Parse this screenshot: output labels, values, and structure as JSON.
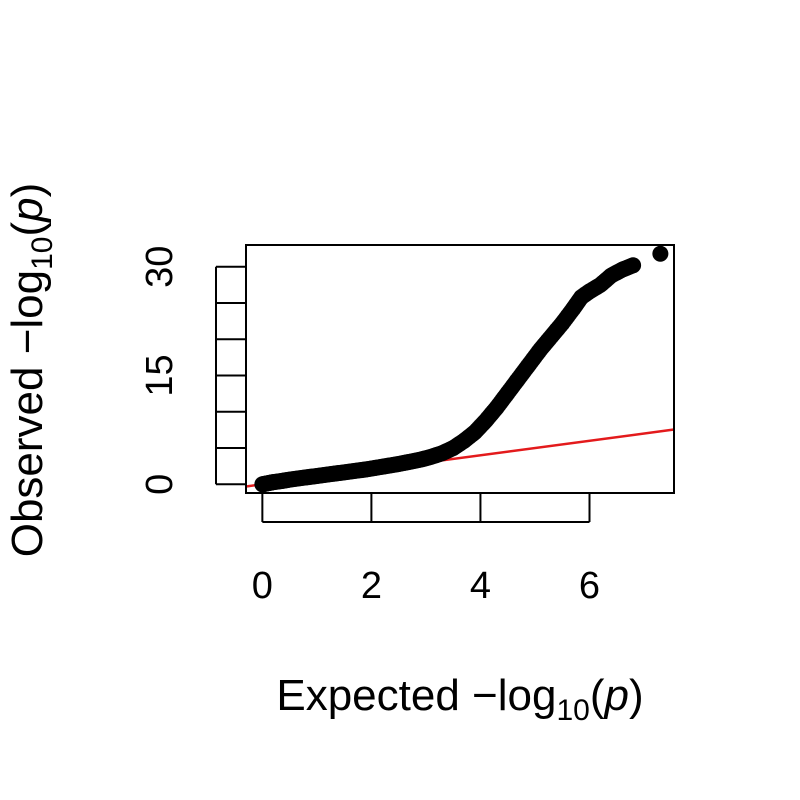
{
  "chart_data": {
    "type": "scatter",
    "title": "",
    "xlabel": {
      "prefix": "Expected  −log",
      "subscript": "10",
      "open": "(",
      "var": "p",
      "close": ")"
    },
    "ylabel": {
      "prefix": "Observed  −log",
      "subscript": "10",
      "open": "(",
      "var": "p",
      "close": ")"
    },
    "xlim": [
      -0.3,
      7.55
    ],
    "ylim": [
      -1.2,
      33
    ],
    "x_ticks": [
      0,
      2,
      4,
      6
    ],
    "x_tick_labels": [
      "0",
      "2",
      "4",
      "6"
    ],
    "y_ticks": [
      0,
      5,
      10,
      15,
      20,
      25,
      30
    ],
    "y_tick_labels": [
      "0",
      "",
      "",
      "15",
      "",
      "",
      "30"
    ],
    "reference_line": {
      "slope": 1,
      "intercept": 0,
      "color": "#e31a1c"
    },
    "point_color": "#000000",
    "series": [
      {
        "values": [
          [
            0.0,
            0.0
          ],
          [
            0.1,
            0.15
          ],
          [
            0.2,
            0.3
          ],
          [
            0.35,
            0.45
          ],
          [
            0.5,
            0.65
          ],
          [
            0.7,
            0.85
          ],
          [
            0.9,
            1.05
          ],
          [
            1.1,
            1.25
          ],
          [
            1.3,
            1.45
          ],
          [
            1.5,
            1.65
          ],
          [
            1.7,
            1.85
          ],
          [
            1.9,
            2.05
          ],
          [
            2.1,
            2.3
          ],
          [
            2.3,
            2.55
          ],
          [
            2.5,
            2.8
          ],
          [
            2.7,
            3.1
          ],
          [
            2.9,
            3.4
          ],
          [
            3.1,
            3.8
          ],
          [
            3.3,
            4.3
          ],
          [
            3.5,
            5.0
          ],
          [
            3.7,
            6.0
          ],
          [
            3.9,
            7.2
          ],
          [
            4.1,
            8.8
          ],
          [
            4.3,
            10.6
          ],
          [
            4.5,
            12.6
          ],
          [
            4.7,
            14.6
          ],
          [
            4.9,
            16.6
          ],
          [
            5.1,
            18.6
          ],
          [
            5.3,
            20.4
          ],
          [
            5.5,
            22.2
          ],
          [
            5.7,
            24.2
          ],
          [
            5.85,
            25.8
          ],
          [
            6.0,
            26.6
          ],
          [
            6.2,
            27.5
          ],
          [
            6.4,
            28.8
          ],
          [
            6.6,
            29.6
          ],
          [
            6.8,
            30.2
          ],
          [
            7.3,
            31.8
          ]
        ]
      }
    ]
  }
}
